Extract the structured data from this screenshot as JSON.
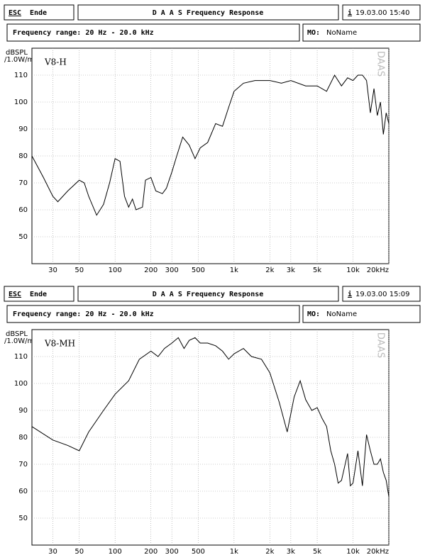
{
  "chart_data": [
    {
      "type": "line",
      "esc": "ESC",
      "esc_label": "Ende",
      "title": "D A A S  Frequency Response",
      "info_icon": "i",
      "timestamp": "19.03.00 15:40",
      "subtitle": "Frequency range: 20 Hz - 20.0 kHz",
      "memo_key": "MO:",
      "memo": "NoName",
      "ylabel": "dBSPL",
      "ylabel_unit": "/1.0W/m",
      "watermark": "DAAS",
      "log_x": true,
      "grid": true,
      "xlim": [
        20,
        20000
      ],
      "ylim": [
        40,
        120
      ],
      "xticks": [
        30,
        50,
        100,
        200,
        300,
        500,
        {
          "value": 1000,
          "label": "1k"
        },
        {
          "value": 2000,
          "label": "2k"
        },
        {
          "value": 3000,
          "label": "3k"
        },
        {
          "value": 5000,
          "label": "5k"
        },
        {
          "value": 10000,
          "label": "10k"
        },
        {
          "value": 20000,
          "label": "20kHz"
        }
      ],
      "yticks": [
        50,
        60,
        70,
        80,
        90,
        100,
        110
      ],
      "x": [
        20,
        25,
        30,
        33,
        40,
        50,
        55,
        60,
        70,
        80,
        90,
        100,
        110,
        120,
        130,
        140,
        150,
        170,
        180,
        200,
        220,
        250,
        270,
        300,
        330,
        370,
        420,
        470,
        520,
        600,
        700,
        800,
        900,
        1000,
        1200,
        1500,
        2000,
        2500,
        3000,
        4000,
        5000,
        6000,
        7000,
        8000,
        9000,
        10000,
        11000,
        12000,
        13000,
        14000,
        15000,
        16000,
        17000,
        18000,
        19000,
        20000
      ],
      "series": [
        {
          "name": "V8-H",
          "color": "#000000",
          "values": [
            80,
            72,
            65,
            63,
            67,
            71,
            70,
            65,
            58,
            62,
            70,
            79,
            78,
            65,
            61,
            64,
            60,
            61,
            71,
            72,
            67,
            66,
            68,
            74,
            80,
            87,
            84,
            79,
            83,
            85,
            92,
            91,
            98,
            104,
            107,
            108,
            108,
            107,
            108,
            106,
            106,
            104,
            110,
            106,
            109,
            108,
            110,
            110,
            108,
            96,
            105,
            95,
            100,
            88,
            96,
            92
          ]
        }
      ]
    },
    {
      "type": "line",
      "esc": "ESC",
      "esc_label": "Ende",
      "title": "D A A S  Frequency Response",
      "info_icon": "i",
      "timestamp": "19.03.00 15:09",
      "subtitle": "Frequency range: 20 Hz - 20.0 kHz",
      "memo_key": "MO:",
      "memo": "NoName",
      "ylabel": "dBSPL",
      "ylabel_unit": "/1.0W/m",
      "watermark": "DAAS",
      "log_x": true,
      "grid": true,
      "xlim": [
        20,
        20000
      ],
      "ylim": [
        40,
        120
      ],
      "xticks": [
        30,
        50,
        100,
        200,
        300,
        500,
        {
          "value": 1000,
          "label": "1k"
        },
        {
          "value": 2000,
          "label": "2k"
        },
        {
          "value": 3000,
          "label": "3k"
        },
        {
          "value": 5000,
          "label": "5k"
        },
        {
          "value": 10000,
          "label": "10k"
        },
        {
          "value": 20000,
          "label": "20kHz"
        }
      ],
      "yticks": [
        50,
        60,
        70,
        80,
        90,
        100,
        110
      ],
      "x": [
        20,
        30,
        40,
        50,
        60,
        80,
        100,
        130,
        160,
        200,
        230,
        260,
        300,
        340,
        380,
        420,
        470,
        520,
        600,
        700,
        800,
        900,
        1000,
        1200,
        1400,
        1700,
        2000,
        2400,
        2800,
        3200,
        3600,
        4000,
        4500,
        5000,
        5500,
        6000,
        6500,
        7000,
        7500,
        8000,
        9000,
        9500,
        10000,
        11000,
        12000,
        13000,
        14000,
        15000,
        16000,
        17000,
        18000,
        19000,
        20000
      ],
      "series": [
        {
          "name": "V8-MH",
          "color": "#000000",
          "values": [
            84,
            79,
            77,
            75,
            82,
            90,
            96,
            101,
            109,
            112,
            110,
            113,
            115,
            117,
            113,
            116,
            117,
            115,
            115,
            114,
            112,
            109,
            111,
            113,
            110,
            109,
            104,
            93,
            82,
            95,
            101,
            94,
            90,
            91,
            87,
            84,
            75,
            70,
            63,
            64,
            74,
            62,
            63,
            75,
            62,
            81,
            75,
            70,
            70,
            72,
            67,
            64,
            58
          ]
        }
      ]
    }
  ]
}
